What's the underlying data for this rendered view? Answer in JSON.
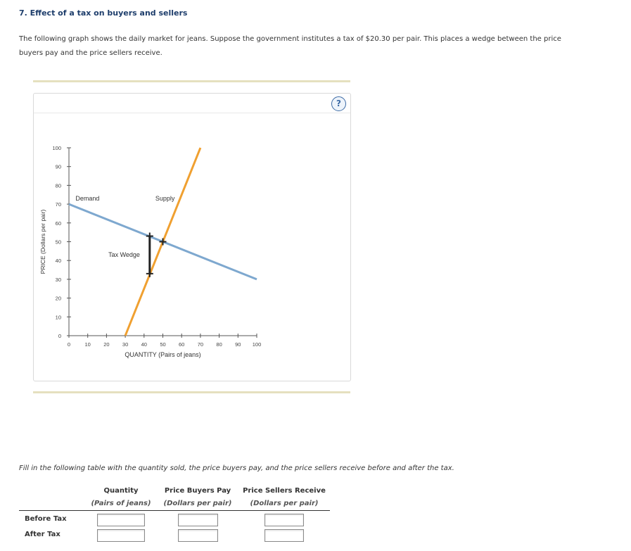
{
  "question": {
    "title": "7. Effect of a tax on buyers and sellers",
    "intro": "The following graph shows the daily market for jeans. Suppose the government institutes a tax of $20.30 per pair. This places a wedge between the price buyers pay and the price sellers receive."
  },
  "graph": {
    "help_symbol": "?",
    "colors": {
      "demand": "#7ea8cf",
      "supply": "#f0a030",
      "wedge": "#222222",
      "axis": "#555555"
    }
  },
  "chart_data": {
    "type": "line",
    "xlabel": "QUANTITY (Pairs of jeans)",
    "ylabel": "PRICE (Dollars per pair)",
    "xlim": [
      0,
      100
    ],
    "ylim": [
      0,
      100
    ],
    "x_ticks": [
      0,
      10,
      20,
      30,
      40,
      50,
      60,
      70,
      80,
      90,
      100
    ],
    "y_ticks": [
      0,
      10,
      20,
      30,
      40,
      50,
      60,
      70,
      80,
      90,
      100
    ],
    "grid": false,
    "series": [
      {
        "name": "Demand",
        "points": [
          [
            0,
            70
          ],
          [
            100,
            30
          ]
        ]
      },
      {
        "name": "Supply",
        "points": [
          [
            30,
            0
          ],
          [
            70,
            100
          ]
        ]
      }
    ],
    "markers": [
      {
        "x": 43,
        "y": 53,
        "shape": "plus"
      },
      {
        "x": 50,
        "y": 50,
        "shape": "plus"
      },
      {
        "x": 43,
        "y": 33,
        "shape": "plus"
      }
    ],
    "tax_wedge": {
      "x": 43,
      "y_low": 33,
      "y_high": 53,
      "label": "Tax Wedge"
    }
  },
  "table": {
    "instruction": "Fill in the following table with the quantity sold, the price buyers pay, and the price sellers receive before and after the tax.",
    "columns": [
      {
        "header": "Quantity",
        "unit": "(Pairs of jeans)"
      },
      {
        "header": "Price Buyers Pay",
        "unit": "(Dollars per pair)"
      },
      {
        "header": "Price Sellers Receive",
        "unit": "(Dollars per pair)"
      }
    ],
    "rows": [
      {
        "label": "Before Tax",
        "values": [
          "",
          "",
          ""
        ]
      },
      {
        "label": "After Tax",
        "values": [
          "",
          "",
          ""
        ]
      }
    ]
  }
}
